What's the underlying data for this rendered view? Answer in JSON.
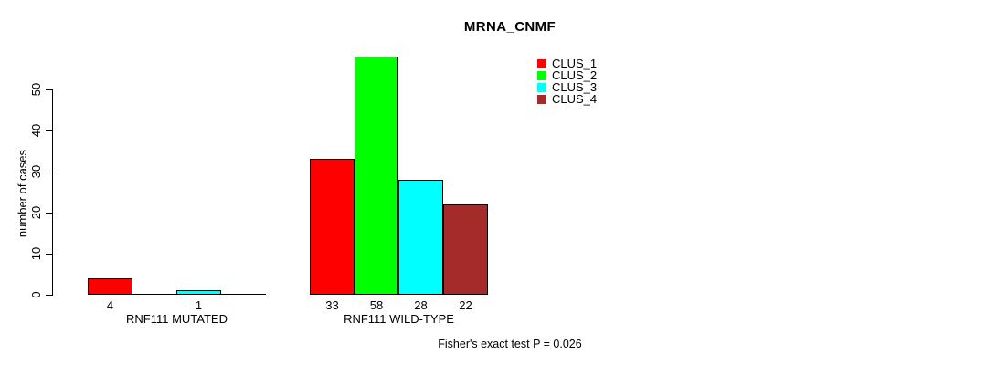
{
  "title": "MRNA_CNMF",
  "y_axis": {
    "label": "number of cases",
    "ticks": [
      0,
      10,
      20,
      30,
      40,
      50
    ]
  },
  "legend": [
    {
      "label": "CLUS_1",
      "color": "#ff0000"
    },
    {
      "label": "CLUS_2",
      "color": "#00ff00"
    },
    {
      "label": "CLUS_3",
      "color": "#00ffff"
    },
    {
      "label": "CLUS_4",
      "color": "#a52a2a"
    }
  ],
  "footer": "Fisher's exact test P = 0.026",
  "chart_data": {
    "type": "bar",
    "categories": [
      "RNF111 MUTATED",
      "RNF111 WILD-TYPE"
    ],
    "series": [
      {
        "name": "CLUS_1",
        "color": "#ff0000",
        "values": [
          4,
          33
        ]
      },
      {
        "name": "CLUS_2",
        "color": "#00ff00",
        "values": [
          0,
          58
        ]
      },
      {
        "name": "CLUS_3",
        "color": "#00ffff",
        "values": [
          1,
          28
        ]
      },
      {
        "name": "CLUS_4",
        "color": "#a52a2a",
        "values": [
          0,
          22
        ]
      }
    ],
    "title": "MRNA_CNMF",
    "xlabel": "",
    "ylabel": "number of cases",
    "ylim": [
      0,
      58
    ],
    "grid": false,
    "legend_position": "top-right",
    "bar_value_labels": "shown under each non-zero bar",
    "annotation": "Fisher's exact test P = 0.026"
  }
}
